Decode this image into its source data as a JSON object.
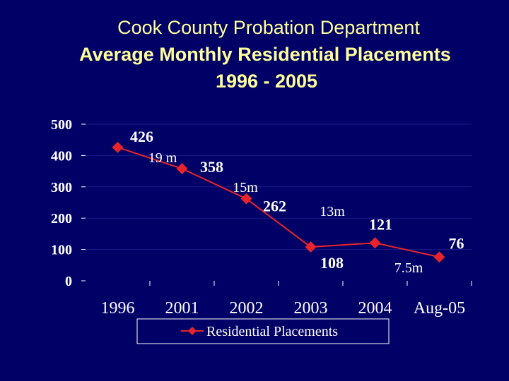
{
  "chart_data": {
    "type": "line",
    "title": [
      "Cook County Probation Department",
      "Average Monthly Residential Placements",
      "1996 - 2005"
    ],
    "categories": [
      "1996",
      "2001",
      "2002",
      "2003",
      "2004",
      "Aug-05"
    ],
    "series": [
      {
        "name": "Residential Placements",
        "color": "#e8242a",
        "values": [
          426,
          358,
          262,
          108,
          121,
          76
        ]
      }
    ],
    "annotations": [
      "19 m",
      "15m",
      "13m",
      "7.5m"
    ],
    "ylim": [
      0,
      500
    ],
    "yticks": [
      0,
      100,
      200,
      300,
      400,
      500
    ],
    "grid": true,
    "legend": "bottom"
  }
}
